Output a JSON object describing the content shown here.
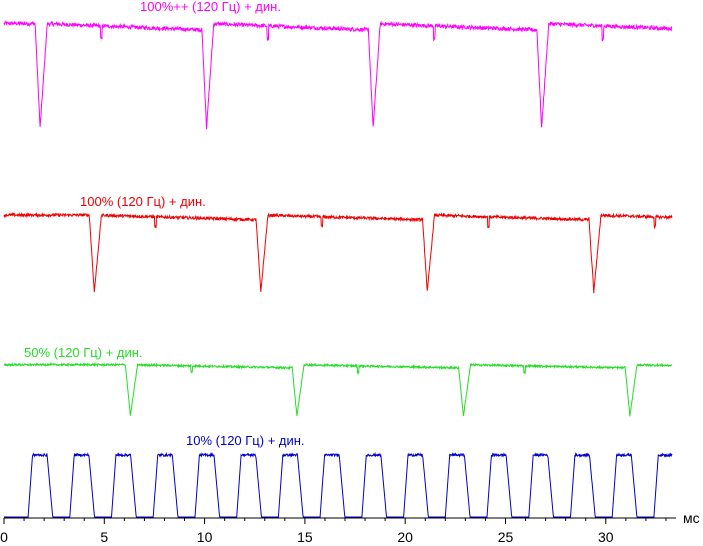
{
  "chart_data": {
    "type": "line",
    "x_unit": "мс",
    "xlim": [
      0,
      33.5
    ],
    "x_ticks": [
      0,
      5,
      10,
      15,
      20,
      25,
      30
    ],
    "grid": false,
    "legend": "inline labels above each trace",
    "series": [
      {
        "name": "100%++ (120 Гц) + дин.",
        "color": "#ff00ff",
        "period_ms": 8.33,
        "pulse_ms": [
          1.8,
          10.1,
          18.4,
          26.8
        ],
        "pulse_kind": "dip",
        "baseline_level": 0.95,
        "extreme_level": 0.0
      },
      {
        "name": "100% (120 Гц) + дин.",
        "color": "#ee0000",
        "period_ms": 8.33,
        "pulse_ms": [
          4.5,
          12.8,
          21.1,
          29.4
        ],
        "pulse_kind": "dip",
        "baseline_level": 0.95,
        "extreme_level": 0.0
      },
      {
        "name": "50% (120 Гц) + дин.",
        "color": "#22dd22",
        "period_ms": 8.33,
        "pulse_ms": [
          6.3,
          14.6,
          22.9,
          31.2
        ],
        "pulse_kind": "dip",
        "baseline_level": 0.95,
        "extreme_level": 0.0
      },
      {
        "name": "10% (120 Гц) + дин.",
        "color": "#0000cc",
        "period_ms": 2.08,
        "first_on_ms": 1.2,
        "on_ms": 0.95,
        "pulse_kind": "pwm",
        "baseline_level": 0.0,
        "extreme_level": 1.0
      }
    ]
  }
}
